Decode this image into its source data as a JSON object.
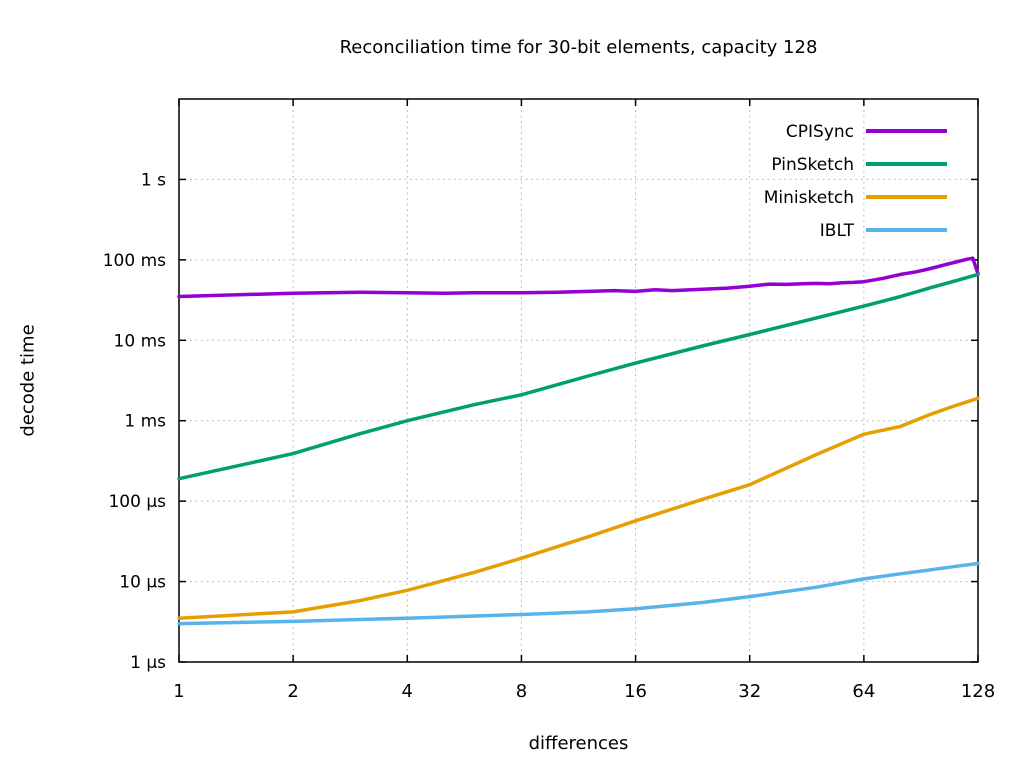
{
  "title": "Reconciliation time for 30-bit elements, capacity 128",
  "chart_data": {
    "type": "line",
    "title": "Reconciliation time for 30-bit elements, capacity 128",
    "xlabel": "differences",
    "ylabel": "decode time",
    "x_scale": "log2",
    "y_scale": "log10",
    "xlim": [
      1,
      128
    ],
    "ylim": [
      1e-06,
      10
    ],
    "y_unit": "seconds",
    "grid": true,
    "grid_color": "#bdbdbd",
    "border_color": "#000000",
    "legend_position": "inside-top-right",
    "x_ticks": [
      1,
      2,
      4,
      8,
      16,
      32,
      64,
      128
    ],
    "y_ticks": [
      {
        "value": 1e-06,
        "label": "1 µs"
      },
      {
        "value": 1e-05,
        "label": "10 µs"
      },
      {
        "value": 0.0001,
        "label": "100 µs"
      },
      {
        "value": 0.001,
        "label": "1 ms"
      },
      {
        "value": 0.01,
        "label": "10 ms"
      },
      {
        "value": 0.1,
        "label": "100 ms"
      },
      {
        "value": 1,
        "label": "1 s"
      }
    ],
    "series": [
      {
        "name": "CPISync",
        "color": "#9400d3",
        "points": [
          [
            1,
            0.035
          ],
          [
            2,
            0.0385
          ],
          [
            3,
            0.0395
          ],
          [
            4,
            0.039
          ],
          [
            5,
            0.0385
          ],
          [
            6,
            0.039
          ],
          [
            8,
            0.039
          ],
          [
            10,
            0.0395
          ],
          [
            12,
            0.0405
          ],
          [
            14,
            0.0415
          ],
          [
            16,
            0.0405
          ],
          [
            18,
            0.0425
          ],
          [
            20,
            0.0415
          ],
          [
            24,
            0.043
          ],
          [
            28,
            0.0445
          ],
          [
            32,
            0.047
          ],
          [
            36,
            0.05
          ],
          [
            40,
            0.0495
          ],
          [
            44,
            0.0505
          ],
          [
            48,
            0.051
          ],
          [
            52,
            0.0505
          ],
          [
            56,
            0.052
          ],
          [
            60,
            0.0525
          ],
          [
            64,
            0.0535
          ],
          [
            72,
            0.059
          ],
          [
            80,
            0.066
          ],
          [
            88,
            0.071
          ],
          [
            96,
            0.078
          ],
          [
            104,
            0.086
          ],
          [
            112,
            0.094
          ],
          [
            120,
            0.102
          ],
          [
            124,
            0.105
          ],
          [
            128,
            0.067
          ]
        ]
      },
      {
        "name": "PinSketch",
        "color": "#009e73",
        "points": [
          [
            1,
            0.00019
          ],
          [
            2,
            0.00039
          ],
          [
            3,
            0.00069
          ],
          [
            4,
            0.001
          ],
          [
            6,
            0.00158
          ],
          [
            8,
            0.0021
          ],
          [
            12,
            0.0036
          ],
          [
            16,
            0.0052
          ],
          [
            24,
            0.0085
          ],
          [
            32,
            0.0118
          ],
          [
            48,
            0.019
          ],
          [
            64,
            0.0266
          ],
          [
            80,
            0.035
          ],
          [
            96,
            0.045
          ],
          [
            112,
            0.055
          ],
          [
            128,
            0.066
          ]
        ]
      },
      {
        "name": "Minisketch",
        "color": "#e69f00",
        "points": [
          [
            1,
            3.5e-06
          ],
          [
            2,
            4.2e-06
          ],
          [
            3,
            5.8e-06
          ],
          [
            4,
            7.8e-06
          ],
          [
            6,
            1.3e-05
          ],
          [
            8,
            1.95e-05
          ],
          [
            12,
            3.6e-05
          ],
          [
            16,
            5.7e-05
          ],
          [
            24,
            0.000105
          ],
          [
            32,
            0.00016
          ],
          [
            48,
            0.00038
          ],
          [
            64,
            0.00068
          ],
          [
            80,
            0.00085
          ],
          [
            96,
            0.0012
          ],
          [
            112,
            0.00155
          ],
          [
            128,
            0.0019
          ]
        ]
      },
      {
        "name": "IBLT",
        "color": "#56b4e9",
        "points": [
          [
            1,
            3e-06
          ],
          [
            2,
            3.2e-06
          ],
          [
            4,
            3.5e-06
          ],
          [
            8,
            3.9e-06
          ],
          [
            12,
            4.2e-06
          ],
          [
            16,
            4.6e-06
          ],
          [
            24,
            5.5e-06
          ],
          [
            32,
            6.5e-06
          ],
          [
            48,
            8.5e-06
          ],
          [
            64,
            1.08e-05
          ],
          [
            80,
            1.25e-05
          ],
          [
            96,
            1.4e-05
          ],
          [
            112,
            1.55e-05
          ],
          [
            128,
            1.68e-05
          ]
        ]
      }
    ]
  }
}
